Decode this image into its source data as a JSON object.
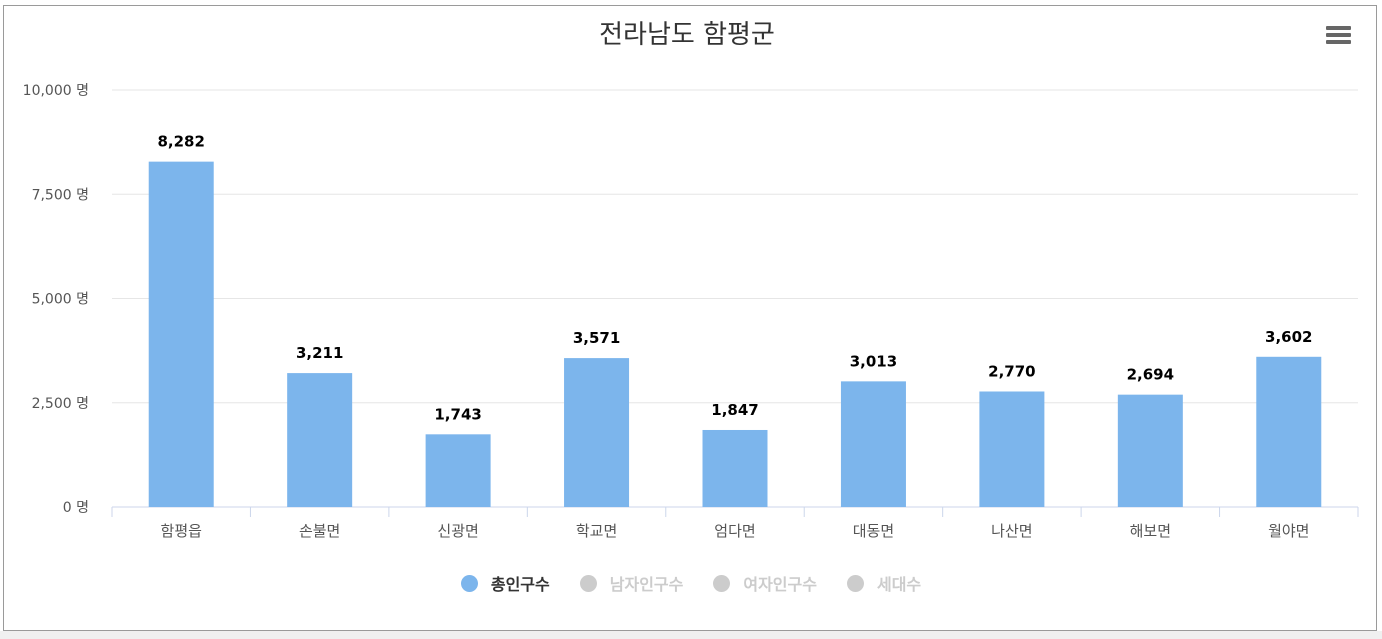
{
  "chart_data": {
    "type": "bar",
    "title": "전라남도 함평군",
    "categories": [
      "함평읍",
      "손불면",
      "신광면",
      "학교면",
      "엄다면",
      "대동면",
      "나산면",
      "해보면",
      "월야면"
    ],
    "series": [
      {
        "name": "총인구수",
        "values": [
          8282,
          3211,
          1743,
          3571,
          1847,
          3013,
          2770,
          2694,
          3602
        ],
        "color": "#7cb5ec",
        "visible": true
      }
    ],
    "data_labels": [
      "8,282",
      "3,211",
      "1,743",
      "3,571",
      "1,847",
      "3,013",
      "2,770",
      "2,694",
      "3,602"
    ],
    "y_ticks": [
      0,
      2500,
      5000,
      7500,
      10000
    ],
    "y_tick_labels": [
      "0 명",
      "2,500 명",
      "5,000 명",
      "7,500 명",
      "10,000 명"
    ],
    "ylim": [
      0,
      10000
    ],
    "grid": true,
    "legend_position": "bottom-center"
  },
  "legend": [
    {
      "label": "총인구수",
      "color": "#7cb5ec",
      "active": true
    },
    {
      "label": "남자인구수",
      "color": "#cccccc",
      "active": false
    },
    {
      "label": "여자인구수",
      "color": "#cccccc",
      "active": false
    },
    {
      "label": "세대수",
      "color": "#cccccc",
      "active": false
    }
  ],
  "icons": {
    "menu": "hamburger-menu-icon"
  }
}
